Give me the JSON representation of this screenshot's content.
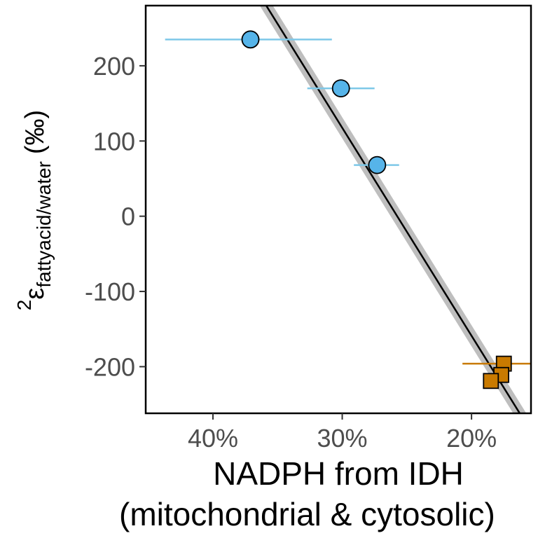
{
  "chart_data": {
    "type": "scatter",
    "xlabel_line1": "NADPH from IDH",
    "xlabel_line2": "(mitochondrial & cytosolic)",
    "ylabel": {
      "superscript": "2",
      "symbol": "ε",
      "subscript": "fattyacid/water",
      "unit": "(‰)"
    },
    "x_reversed": true,
    "xlim": [
      0.154,
      0.452
    ],
    "ylim": [
      -262,
      280
    ],
    "x_ticks": [
      {
        "value": 0.4,
        "label": "40%"
      },
      {
        "value": 0.3,
        "label": "30%"
      },
      {
        "value": 0.2,
        "label": "20%"
      }
    ],
    "y_ticks": [
      {
        "value": 200,
        "label": "200"
      },
      {
        "value": 100,
        "label": "100"
      },
      {
        "value": 0,
        "label": "0"
      },
      {
        "value": -100,
        "label": "-100"
      },
      {
        "value": -200,
        "label": "-200"
      }
    ],
    "grid": false,
    "series": [
      {
        "marker": "circle",
        "color": "#56B4E9",
        "errorbar_color": "#7EC8E8",
        "points": [
          {
            "x": 0.371,
            "y": 235,
            "xmin": 0.308,
            "xmax": 0.437
          },
          {
            "x": 0.301,
            "y": 170,
            "xmin": 0.275,
            "xmax": 0.327
          },
          {
            "x": 0.273,
            "y": 68,
            "xmin": 0.256,
            "xmax": 0.291
          }
        ]
      },
      {
        "marker": "square",
        "color": "#C97A00",
        "errorbar_color": "#C97A00",
        "points": [
          {
            "x": 0.175,
            "y": -196,
            "xmin": 0.144,
            "xmax": 0.207
          },
          {
            "x": 0.177,
            "y": -211,
            "xmin": 0.172,
            "xmax": 0.186
          },
          {
            "x": 0.185,
            "y": -219,
            "xmin": 0.176,
            "xmax": 0.191
          }
        ]
      }
    ],
    "fit": {
      "x0": 0.366,
      "y0": 300,
      "x1": 0.158,
      "y1": -275,
      "band_halfwidth_y": 14,
      "line_color": "#000000",
      "band_color": "#BEBEBE"
    },
    "colors": {
      "panel_border": "#000000",
      "tick_text": "#4d4d4d",
      "title_text": "#000000"
    }
  }
}
